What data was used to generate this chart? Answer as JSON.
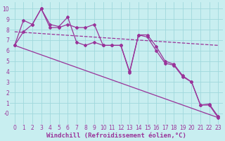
{
  "background_color": "#c8eef0",
  "grid_color": "#a0d8dc",
  "line_color": "#993399",
  "xlabel": "Windchill (Refroidissement éolien,°C)",
  "xlabel_fontsize": 6.5,
  "tick_fontsize": 5.5,
  "xlim": [
    -0.5,
    23.5
  ],
  "ylim": [
    -1.0,
    10.6
  ],
  "yticks": [
    0,
    1,
    2,
    3,
    4,
    5,
    6,
    7,
    8,
    9,
    10
  ],
  "ytick_labels": [
    "-0",
    "1",
    "2",
    "3",
    "4",
    "5",
    "6",
    "7",
    "8",
    "9",
    "10"
  ],
  "xticks": [
    0,
    1,
    2,
    3,
    4,
    5,
    6,
    7,
    8,
    9,
    10,
    11,
    12,
    13,
    14,
    15,
    16,
    17,
    18,
    19,
    20,
    21,
    22,
    23
  ],
  "series1_x": [
    0,
    1,
    2,
    3,
    4,
    5,
    6,
    7,
    8,
    9,
    10,
    11,
    12,
    13,
    14,
    15,
    16,
    17,
    18,
    19,
    20,
    21,
    22,
    23
  ],
  "series1_y": [
    6.5,
    8.9,
    8.5,
    10.0,
    8.5,
    8.3,
    9.2,
    6.8,
    6.5,
    6.8,
    6.5,
    6.5,
    6.5,
    3.9,
    7.5,
    7.5,
    6.4,
    5.0,
    4.7,
    3.6,
    3.0,
    0.8,
    0.9,
    -0.3
  ],
  "series2_x": [
    0,
    1,
    2,
    3,
    4,
    5,
    6,
    7,
    8,
    9,
    10,
    11,
    12,
    13,
    14,
    15,
    16,
    17,
    18,
    19,
    20,
    21,
    22,
    23
  ],
  "series2_y": [
    6.5,
    7.8,
    8.5,
    10.0,
    8.2,
    8.2,
    8.5,
    8.2,
    8.2,
    8.5,
    6.5,
    6.5,
    6.5,
    4.0,
    7.5,
    7.3,
    6.0,
    4.8,
    4.6,
    3.5,
    3.0,
    0.8,
    0.8,
    -0.4
  ],
  "trend1_x": [
    0,
    23
  ],
  "trend1_y": [
    7.8,
    6.5
  ],
  "trend2_x": [
    0,
    23
  ],
  "trend2_y": [
    6.5,
    -0.4
  ]
}
